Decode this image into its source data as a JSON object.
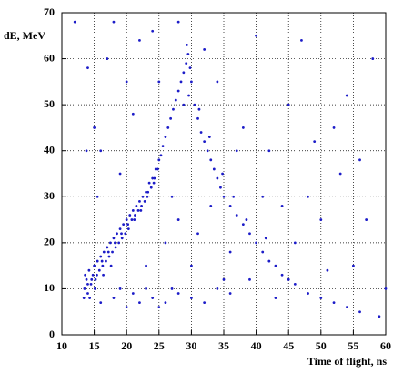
{
  "chart_data": {
    "type": "scatter",
    "x_label": "Time of flight, ns",
    "y_label": "dE, MeV",
    "xlim": [
      10,
      60
    ],
    "xticks": [
      10,
      15,
      20,
      25,
      30,
      35,
      40,
      45,
      50,
      55,
      60
    ],
    "ylim": [
      0,
      70
    ],
    "yticks": [
      0,
      10,
      20,
      30,
      40,
      50,
      60,
      70
    ],
    "grid": true,
    "color": "#1c1cc8",
    "x": [
      13.5,
      13.8,
      14,
      14.2,
      14.5,
      14.8,
      15,
      15.2,
      15.5,
      15.8,
      16,
      16.3,
      16.5,
      16.8,
      17,
      17.3,
      17.5,
      17.8,
      18,
      18.3,
      18.5,
      18.8,
      19,
      19.3,
      19.5,
      19.8,
      20,
      20.3,
      20.5,
      20.8,
      21,
      21.3,
      21.5,
      21.8,
      22,
      22.3,
      22.5,
      22.8,
      23,
      23.3,
      23.5,
      23.8,
      24,
      24.3,
      24.5,
      24.8,
      25,
      25.3,
      25.6,
      26,
      26.4,
      26.8,
      27.2,
      27.6,
      28,
      28.4,
      28.8,
      29.2,
      29.5,
      29.8,
      30,
      29.6,
      28.8,
      29.3,
      14,
      14.6,
      15.4,
      16.2,
      17.2,
      18.2,
      19.2,
      20.2,
      21.2,
      22.2,
      23.2,
      24.2,
      13.6,
      13.4,
      14.3,
      15.1,
      16.4,
      17.6,
      30.5,
      31,
      31.5,
      32,
      32.5,
      33,
      33.5,
      34,
      34.5,
      35,
      36,
      37,
      38,
      39,
      40,
      41,
      42,
      43,
      44,
      45,
      46,
      48,
      50,
      52,
      54,
      56,
      31.2,
      32.8,
      34.8,
      36.5,
      38.5,
      41.5,
      16,
      18,
      20,
      21,
      22,
      24,
      26,
      28,
      30,
      32,
      34,
      36,
      19,
      23,
      25,
      27,
      15,
      17,
      18,
      20,
      22,
      14,
      16,
      24,
      26,
      28,
      30,
      32,
      34,
      38,
      42,
      45,
      48,
      50,
      52,
      55,
      58,
      60,
      40,
      36,
      44,
      47,
      53,
      57,
      19,
      21,
      23,
      25,
      27,
      31,
      33,
      35,
      37,
      39,
      41,
      43,
      46,
      49,
      51,
      54,
      56,
      59,
      15.5,
      13.8,
      12,
      28
    ],
    "values": [
      10,
      12,
      9,
      14,
      11,
      13,
      15,
      12,
      16,
      14,
      17,
      15,
      18,
      16,
      19,
      17,
      20,
      18,
      21,
      19,
      22,
      20,
      23,
      21,
      24,
      22,
      25,
      23,
      26,
      25,
      27,
      26,
      28,
      27,
      29,
      28,
      30,
      29,
      31,
      31,
      33,
      32,
      34,
      34,
      36,
      36,
      38,
      39,
      41,
      43,
      45,
      47,
      49,
      51,
      53,
      55,
      57,
      59,
      61,
      58,
      55,
      52,
      50,
      63,
      11,
      12,
      13,
      16,
      18,
      20,
      22,
      24,
      25,
      27,
      30,
      33,
      13,
      8,
      8,
      10,
      13,
      15,
      50,
      47,
      44,
      42,
      40,
      38,
      36,
      34,
      32,
      30,
      28,
      26,
      24,
      22,
      20,
      18,
      16,
      15,
      13,
      12,
      11,
      9,
      8,
      7,
      6,
      5,
      49,
      43,
      35,
      30,
      25,
      21,
      7,
      8,
      6,
      9,
      7,
      8,
      7,
      9,
      8,
      7,
      10,
      9,
      10,
      10,
      6,
      10,
      45,
      60,
      68,
      55,
      64,
      58,
      40,
      66,
      20,
      25,
      15,
      62,
      55,
      45,
      40,
      50,
      30,
      25,
      45,
      15,
      60,
      10,
      65,
      18,
      28,
      64,
      35,
      25,
      35,
      48,
      15,
      55,
      30,
      22,
      28,
      12,
      40,
      12,
      30,
      8,
      20,
      42,
      14,
      52,
      38,
      4,
      30,
      40,
      68,
      68
    ]
  }
}
